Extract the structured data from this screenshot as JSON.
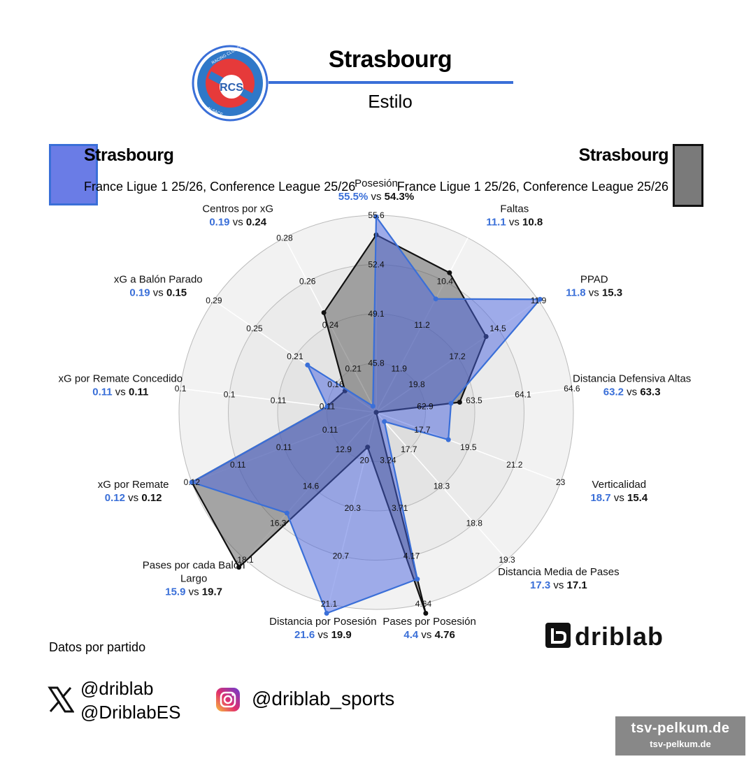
{
  "header": {
    "title": "Strasbourg",
    "subtitle": "Estilo",
    "logo_ring_text_top": "RACING CLUB DE STRASBOURG",
    "logo_ring_text_bottom": "ALSACE",
    "logo_monogram": "RCS"
  },
  "legend": {
    "left": {
      "team": "Strasbourg",
      "competitions": "France Ligue 1 25/26, Conference League 25/26",
      "color": "#3a6fd8"
    },
    "right": {
      "team": "Strasbourg",
      "competitions": "France Ligue 1 25/26, Conference League 25/26",
      "color": "#111111"
    }
  },
  "footer": {
    "note": "Datos por partido",
    "twitter_handles": [
      "@driblab",
      "@DriblabES"
    ],
    "instagram_handle": "@driblab_sports",
    "brand": "driblab",
    "watermark_line1": "tsv-pelkum.de",
    "watermark_line2": "tsv-pelkum.de"
  },
  "chart_data": {
    "type": "radar",
    "vs_word": "vs",
    "series": [
      {
        "color": "#3a6fd8",
        "fill": "#4a63e0",
        "values": [
          55.5,
          11.1,
          11.8,
          63.2,
          18.7,
          17.3,
          4.4,
          21.6,
          15.9,
          0.12,
          0.11,
          0.19,
          0.19
        ]
      },
      {
        "color": "#111111",
        "fill": "#555555",
        "values": [
          54.3,
          10.8,
          15.3,
          63.3,
          15.4,
          17.1,
          4.76,
          19.9,
          19.7,
          0.12,
          0.11,
          0.15,
          0.24
        ]
      }
    ],
    "axes": [
      {
        "name": [
          "Posesión"
        ],
        "v1": "55.5%",
        "v2": "54.3%",
        "ticks": [
          "45.8",
          "49.1",
          "52.4",
          "55.6"
        ]
      },
      {
        "name": [
          "Faltas"
        ],
        "v1": "11.1",
        "v2": "10.8",
        "ticks": [
          "11.9",
          "11.2",
          "10.4"
        ]
      },
      {
        "name": [
          "PPAD"
        ],
        "v1": "11.8",
        "v2": "15.3",
        "ticks": [
          "19.8",
          "17.2",
          "14.5",
          "11.9"
        ]
      },
      {
        "name": [
          "Distancia Defensiva Altas"
        ],
        "v1": "63.2",
        "v2": "63.3",
        "ticks": [
          "62.9",
          "63.5",
          "64.1",
          "64.6"
        ]
      },
      {
        "name": [
          "Verticalidad"
        ],
        "v1": "18.7",
        "v2": "15.4",
        "ticks": [
          "17.7",
          "19.5",
          "21.2",
          "23"
        ]
      },
      {
        "name": [
          "Distancia Media de Pases"
        ],
        "v1": "17.3",
        "v2": "17.1",
        "ticks": [
          "17.7",
          "18.3",
          "18.8",
          "19.3"
        ]
      },
      {
        "name": [
          "Pases por Posesión"
        ],
        "v1": "4.4",
        "v2": "4.76",
        "ticks": [
          "3.24",
          "3.71",
          "4.17",
          "4.64"
        ]
      },
      {
        "name": [
          "Distancia por Posesión"
        ],
        "v1": "21.6",
        "v2": "19.9",
        "ticks": [
          "20",
          "20.3",
          "20.7",
          "21.1"
        ]
      },
      {
        "name": [
          "Pases por cada Balón",
          "Largo"
        ],
        "v1": "15.9",
        "v2": "19.7",
        "ticks": [
          "12.9",
          "14.6",
          "16.3",
          "18.1"
        ]
      },
      {
        "name": [
          "xG por Remate"
        ],
        "v1": "0.12",
        "v2": "0.12",
        "ticks": [
          "0.11",
          "0.11",
          "0.11",
          "0.12"
        ]
      },
      {
        "name": [
          "xG por Remate Concedido"
        ],
        "v1": "0.11",
        "v2": "0.11",
        "ticks": [
          "0.11",
          "0.11",
          "0.1",
          "0.1"
        ]
      },
      {
        "name": [
          "xG a Balón Parado"
        ],
        "v1": "0.19",
        "v2": "0.15",
        "ticks": [
          "0.16",
          "0.21",
          "0.25",
          "0.29"
        ]
      },
      {
        "name": [
          "Centros por xG"
        ],
        "v1": "0.19",
        "v2": "0.24",
        "ticks": [
          "0.21",
          "0.24",
          "0.26",
          "0.28"
        ]
      }
    ]
  }
}
